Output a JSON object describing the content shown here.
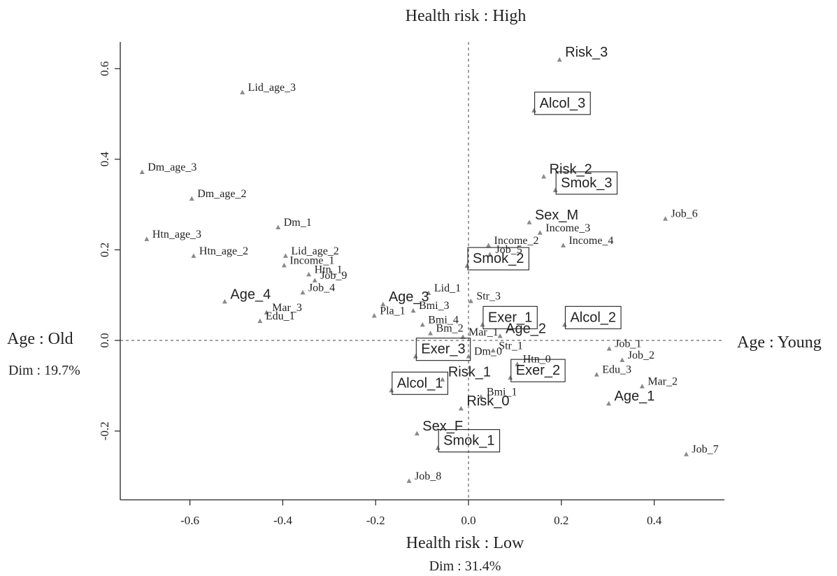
{
  "chart_data": {
    "type": "scatter",
    "title_top": "Health risk : High",
    "xlabel": "Health risk : Low",
    "xlabel_sub": "Dim : 31.4%",
    "ylabel_left": "Age : Old",
    "ylabel_left_sub": "Dim : 19.7%",
    "ylabel_right": "Age : Young",
    "xlim": [
      -0.75,
      0.55
    ],
    "ylim": [
      -0.35,
      0.66
    ],
    "xticks": [
      -0.6,
      -0.4,
      -0.2,
      0.0,
      0.2,
      0.4
    ],
    "xtick_labels": [
      "-0.6",
      "-0.4",
      "-0.2",
      "0.0",
      "0.2",
      "0.4"
    ],
    "yticks": [
      -0.2,
      0.0,
      0.2,
      0.4,
      0.6
    ],
    "ytick_labels": [
      "-0.2",
      "0.0",
      "0.2",
      "0.4",
      "0.6"
    ],
    "reference_lines": {
      "x": 0,
      "y": 0
    },
    "marker_color": "#8a8a8a",
    "points": [
      {
        "label": "Risk_3",
        "x": 0.196,
        "y": 0.62,
        "style": "large"
      },
      {
        "label": "Alcol_3",
        "x": 0.141,
        "y": 0.508,
        "style": "boxed"
      },
      {
        "label": "Lid_age_3",
        "x": -0.487,
        "y": 0.548,
        "style": "small"
      },
      {
        "label": "Dm_age_3",
        "x": -0.703,
        "y": 0.372,
        "style": "small"
      },
      {
        "label": "Dm_age_2",
        "x": -0.596,
        "y": 0.313,
        "style": "small"
      },
      {
        "label": "Risk_2",
        "x": 0.162,
        "y": 0.362,
        "style": "large"
      },
      {
        "label": "Smok_3",
        "x": 0.187,
        "y": 0.332,
        "style": "boxed"
      },
      {
        "label": "Job_6",
        "x": 0.424,
        "y": 0.269,
        "style": "small"
      },
      {
        "label": "Sex_M",
        "x": 0.131,
        "y": 0.261,
        "style": "large"
      },
      {
        "label": "Income_3",
        "x": 0.154,
        "y": 0.238,
        "style": "small"
      },
      {
        "label": "Income_4",
        "x": 0.204,
        "y": 0.21,
        "style": "small"
      },
      {
        "label": "Income_2",
        "x": 0.043,
        "y": 0.21,
        "style": "small"
      },
      {
        "label": "Job_5",
        "x": 0.046,
        "y": 0.19,
        "style": "small"
      },
      {
        "label": "Smok_2",
        "x": -0.003,
        "y": 0.165,
        "style": "boxed"
      },
      {
        "label": "Htn_age_3",
        "x": -0.693,
        "y": 0.224,
        "style": "small"
      },
      {
        "label": "Dm_1",
        "x": -0.41,
        "y": 0.25,
        "style": "small"
      },
      {
        "label": "Htn_age_2",
        "x": -0.592,
        "y": 0.187,
        "style": "small"
      },
      {
        "label": "Lid_age_2",
        "x": -0.394,
        "y": 0.187,
        "style": "small"
      },
      {
        "label": "Income_1",
        "x": -0.397,
        "y": 0.166,
        "style": "small"
      },
      {
        "label": "Htn_1",
        "x": -0.344,
        "y": 0.146,
        "style": "small"
      },
      {
        "label": "Job_9",
        "x": -0.331,
        "y": 0.133,
        "style": "small"
      },
      {
        "label": "Job_4",
        "x": -0.357,
        "y": 0.106,
        "style": "small"
      },
      {
        "label": "Age_4",
        "x": -0.525,
        "y": 0.086,
        "style": "large"
      },
      {
        "label": "Mar_3",
        "x": -0.435,
        "y": 0.062,
        "style": "small"
      },
      {
        "label": "Edu_1",
        "x": -0.449,
        "y": 0.043,
        "style": "small"
      },
      {
        "label": "Lid_1",
        "x": -0.086,
        "y": 0.105,
        "style": "small"
      },
      {
        "label": "Age_3",
        "x": -0.184,
        "y": 0.08,
        "style": "large"
      },
      {
        "label": "Bmi_3",
        "x": -0.119,
        "y": 0.066,
        "style": "small"
      },
      {
        "label": "Pla_1",
        "x": -0.203,
        "y": 0.055,
        "style": "small"
      },
      {
        "label": "Str_3",
        "x": 0.005,
        "y": 0.087,
        "style": "small"
      },
      {
        "label": "Bmi_4",
        "x": -0.099,
        "y": 0.035,
        "style": "small"
      },
      {
        "label": "Bm_2",
        "x": -0.082,
        "y": 0.016,
        "style": "small"
      },
      {
        "label": "Mar_1",
        "x": -0.012,
        "y": 0.008,
        "style": "small"
      },
      {
        "label": "Exer_1",
        "x": 0.03,
        "y": 0.035,
        "style": "boxed"
      },
      {
        "label": "Age_2",
        "x": 0.068,
        "y": 0.01,
        "style": "large"
      },
      {
        "label": "Alcol_2",
        "x": 0.207,
        "y": 0.035,
        "style": "boxed"
      },
      {
        "label": "Dm_0",
        "x": 0.0,
        "y": -0.035,
        "style": "small"
      },
      {
        "label": "Exer_3",
        "x": -0.114,
        "y": -0.035,
        "style": "boxed"
      },
      {
        "label": "Str_1",
        "x": 0.053,
        "y": -0.022,
        "style": "small"
      },
      {
        "label": "Job_1",
        "x": 0.303,
        "y": -0.018,
        "style": "small"
      },
      {
        "label": "Job_2",
        "x": 0.331,
        "y": -0.043,
        "style": "small"
      },
      {
        "label": "Htn_0",
        "x": 0.105,
        "y": -0.052,
        "style": "small"
      },
      {
        "label": "Exer_2",
        "x": 0.09,
        "y": -0.082,
        "style": "boxed"
      },
      {
        "label": "Edu_3",
        "x": 0.276,
        "y": -0.075,
        "style": "small"
      },
      {
        "label": "Mar_2",
        "x": 0.374,
        "y": -0.101,
        "style": "small"
      },
      {
        "label": "Risk_1",
        "x": -0.056,
        "y": -0.086,
        "style": "large"
      },
      {
        "label": "Alcol_1",
        "x": -0.166,
        "y": -0.11,
        "style": "boxed"
      },
      {
        "label": "Bmi_1",
        "x": 0.027,
        "y": -0.124,
        "style": "small"
      },
      {
        "label": "Risk_0",
        "x": -0.016,
        "y": -0.15,
        "style": "large"
      },
      {
        "label": "Age_1",
        "x": 0.302,
        "y": -0.139,
        "style": "large"
      },
      {
        "label": "Sex_F",
        "x": -0.111,
        "y": -0.205,
        "style": "large"
      },
      {
        "label": "Smok_1",
        "x": -0.066,
        "y": -0.237,
        "style": "boxed"
      },
      {
        "label": "Job_7",
        "x": 0.469,
        "y": -0.251,
        "style": "small"
      },
      {
        "label": "Job_8",
        "x": -0.128,
        "y": -0.31,
        "style": "small"
      }
    ]
  }
}
